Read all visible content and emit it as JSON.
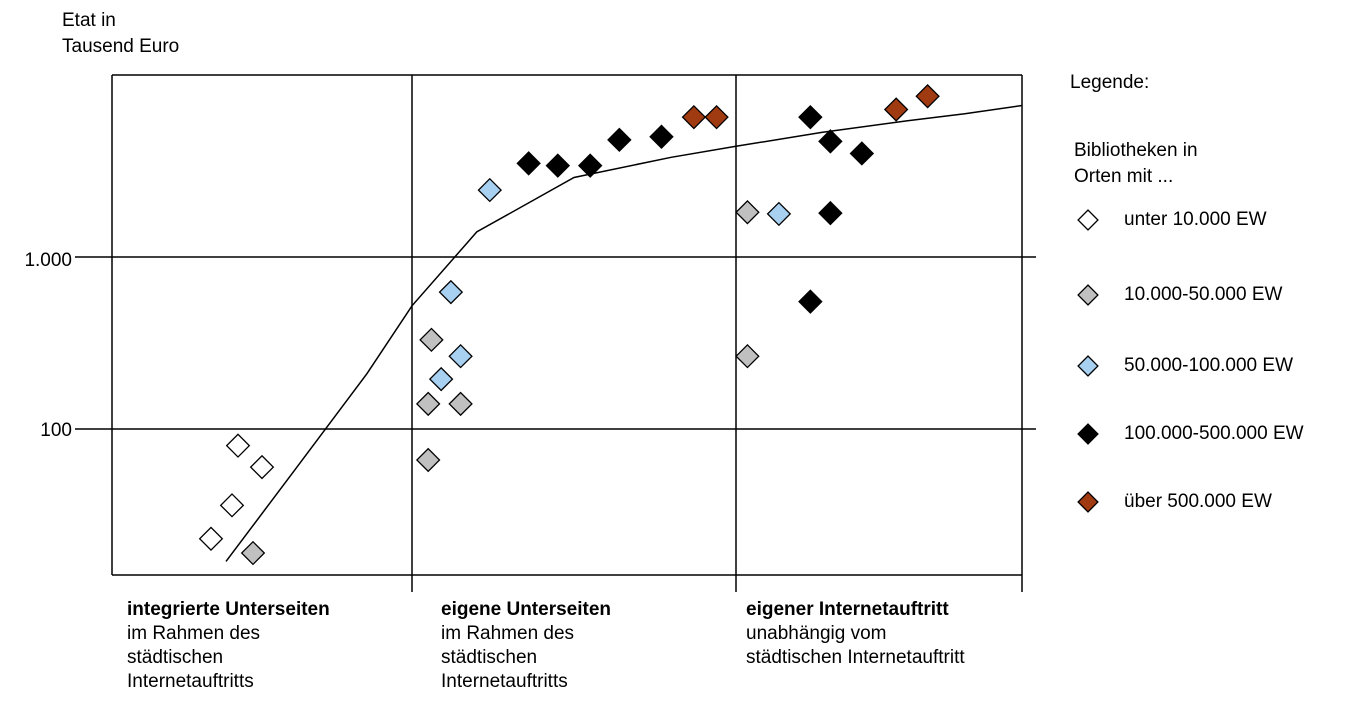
{
  "chart_data": {
    "type": "scatter",
    "ylabel_lines": [
      "Etat in",
      "Tausend Euro"
    ],
    "yscale": "log",
    "yticks": [
      {
        "value": 100,
        "label": "100"
      },
      {
        "value": 1000,
        "label": "1.000"
      }
    ],
    "categories": [
      {
        "head": "integrierte Unterseiten",
        "lines": [
          "im Rahmen des",
          "städtischen",
          "Internetauftritts"
        ]
      },
      {
        "head": "eigene Unterseiten",
        "lines": [
          "im Rahmen des",
          "städtischen",
          "Internetauftritts"
        ]
      },
      {
        "head": "eigener Internetauftritt",
        "lines": [
          "unabhängig vom",
          "städtischen Internetauftritt"
        ]
      }
    ],
    "legend_title": "Legende:",
    "legend_subtitle_lines": [
      "Bibliotheken in",
      "Orten mit ..."
    ],
    "series": [
      {
        "name": "unter 10.000 EW",
        "color": "#ffffff",
        "points": [
          {
            "c": 0.42,
            "y": 80
          },
          {
            "c": 0.5,
            "y": 60
          },
          {
            "c": 0.4,
            "y": 36
          },
          {
            "c": 0.33,
            "y": 23
          }
        ]
      },
      {
        "name": "10.000-50.000 EW",
        "color": "#c0c0c0",
        "points": [
          {
            "c": 0.47,
            "y": 19
          },
          {
            "c": 1.06,
            "y": 330
          },
          {
            "c": 1.05,
            "y": 140
          },
          {
            "c": 1.15,
            "y": 140
          },
          {
            "c": 1.05,
            "y": 66
          },
          {
            "c": 2.04,
            "y": 1820
          },
          {
            "c": 2.04,
            "y": 265
          }
        ]
      },
      {
        "name": "50.000-100.000 EW",
        "color": "#a8d0f0",
        "points": [
          {
            "c": 1.24,
            "y": 2450
          },
          {
            "c": 1.12,
            "y": 625
          },
          {
            "c": 1.15,
            "y": 265
          },
          {
            "c": 1.09,
            "y": 195
          },
          {
            "c": 2.15,
            "y": 1780
          }
        ]
      },
      {
        "name": "100.000-500.000 EW",
        "color": "#000000",
        "points": [
          {
            "c": 1.36,
            "y": 3500
          },
          {
            "c": 1.45,
            "y": 3400
          },
          {
            "c": 1.55,
            "y": 3400
          },
          {
            "c": 1.64,
            "y": 4800
          },
          {
            "c": 1.77,
            "y": 5000
          },
          {
            "c": 2.26,
            "y": 6500
          },
          {
            "c": 2.33,
            "y": 4700
          },
          {
            "c": 2.44,
            "y": 4000
          },
          {
            "c": 2.33,
            "y": 1800
          },
          {
            "c": 2.26,
            "y": 550
          }
        ]
      },
      {
        "name": "über 500.000 EW",
        "color": "#a03a10",
        "points": [
          {
            "c": 1.87,
            "y": 6500
          },
          {
            "c": 1.94,
            "y": 6500
          },
          {
            "c": 2.56,
            "y": 7200
          },
          {
            "c": 2.67,
            "y": 8600
          }
        ]
      }
    ],
    "trend_line": [
      {
        "c": 0.38,
        "y": 17
      },
      {
        "c": 0.6,
        "y": 55
      },
      {
        "c": 0.85,
        "y": 210
      },
      {
        "c": 1.0,
        "y": 520
      },
      {
        "c": 1.2,
        "y": 1400
      },
      {
        "c": 1.5,
        "y": 2900
      },
      {
        "c": 1.8,
        "y": 3800
      },
      {
        "c": 2.0,
        "y": 4400
      },
      {
        "c": 2.3,
        "y": 5300
      },
      {
        "c": 2.6,
        "y": 6200
      },
      {
        "c": 2.8,
        "y": 6800
      },
      {
        "c": 3.0,
        "y": 7600
      }
    ],
    "grid": true
  }
}
